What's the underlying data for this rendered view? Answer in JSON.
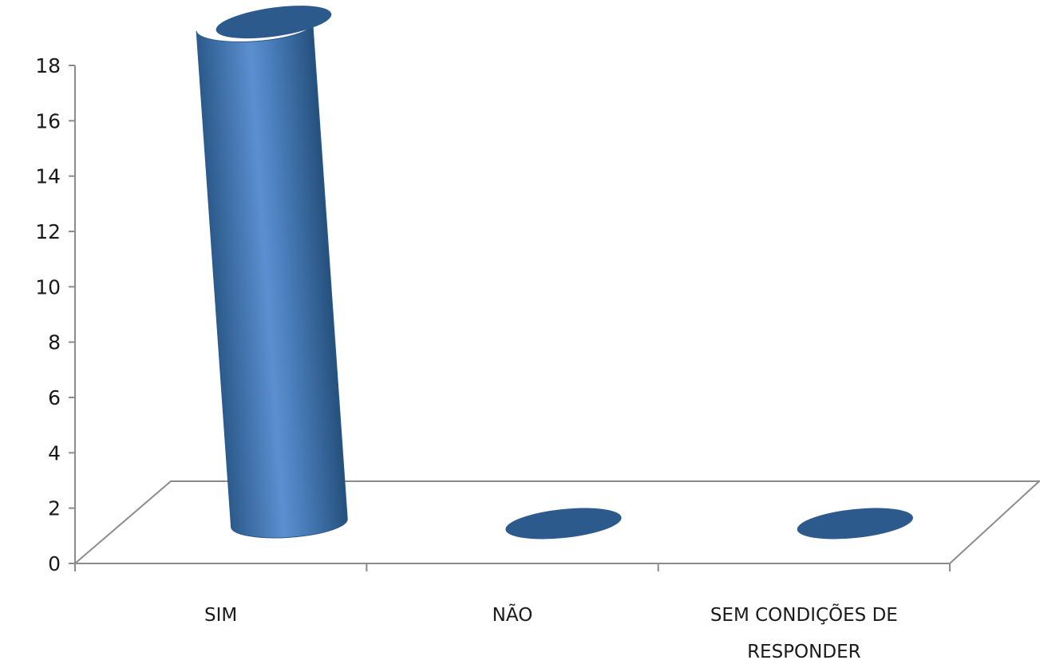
{
  "chart_data": {
    "type": "bar",
    "style": "3d-cylinder",
    "categories": [
      "SIM",
      "NÃO",
      "SEM CONDIÇÕES DE RESPONDER"
    ],
    "category_lines": [
      [
        "SIM"
      ],
      [
        "NÃO"
      ],
      [
        "SEM CONDIÇÕES  DE",
        "RESPONDER"
      ]
    ],
    "values": [
      18,
      0,
      0
    ],
    "ylim": [
      0,
      18
    ],
    "yticks": [
      "0",
      "2",
      "4",
      "6",
      "8",
      "10",
      "12",
      "14",
      "16",
      "18"
    ],
    "grid": false,
    "legend": "none",
    "colors": {
      "bar": "#4a7ebb",
      "bar_dark": "#2c5a8c",
      "bar_light": "#8fb3e0",
      "axis": "#8c8c8c"
    }
  }
}
